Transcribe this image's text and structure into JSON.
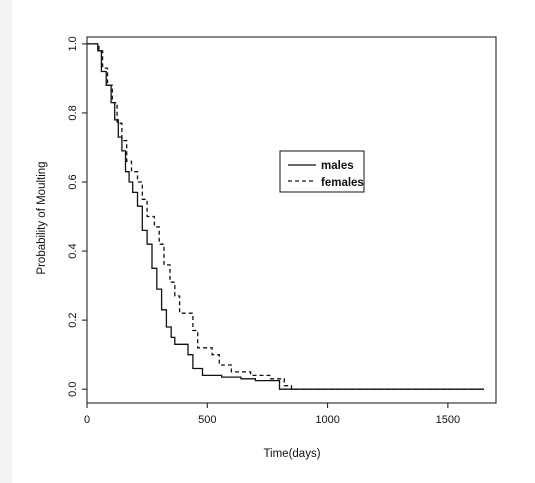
{
  "chart_data": {
    "type": "line",
    "step": true,
    "xlabel": "Time(days)",
    "ylabel": "Probability of Moulting",
    "xlim": [
      0,
      1700
    ],
    "ylim": [
      -0.04,
      1.02
    ],
    "xticks": [
      {
        "value": 0,
        "label": "0"
      },
      {
        "value": 500,
        "label": "500"
      },
      {
        "value": 1000,
        "label": "1000"
      },
      {
        "value": 1500,
        "label": "1500"
      }
    ],
    "yticks": [
      {
        "value": 0.0,
        "label": "0.0"
      },
      {
        "value": 0.2,
        "label": "0.2"
      },
      {
        "value": 0.4,
        "label": "0.4"
      },
      {
        "value": 0.6,
        "label": "0.6"
      },
      {
        "value": 0.8,
        "label": "0.8"
      },
      {
        "value": 1.0,
        "label": "1.0"
      }
    ],
    "grid": false,
    "legend_position": "upper-right",
    "series": [
      {
        "name": "males",
        "line_style": "solid",
        "color": "#111111",
        "points": [
          [
            0,
            1.0
          ],
          [
            45,
            0.98
          ],
          [
            60,
            0.92
          ],
          [
            80,
            0.88
          ],
          [
            100,
            0.83
          ],
          [
            115,
            0.78
          ],
          [
            130,
            0.73
          ],
          [
            145,
            0.69
          ],
          [
            160,
            0.63
          ],
          [
            175,
            0.6
          ],
          [
            190,
            0.57
          ],
          [
            210,
            0.53
          ],
          [
            230,
            0.46
          ],
          [
            250,
            0.42
          ],
          [
            270,
            0.35
          ],
          [
            290,
            0.29
          ],
          [
            310,
            0.23
          ],
          [
            330,
            0.18
          ],
          [
            350,
            0.15
          ],
          [
            365,
            0.13
          ],
          [
            420,
            0.1
          ],
          [
            440,
            0.06
          ],
          [
            480,
            0.04
          ],
          [
            560,
            0.035
          ],
          [
            640,
            0.03
          ],
          [
            700,
            0.025
          ],
          [
            800,
            0.0
          ],
          [
            1650,
            0.0
          ]
        ]
      },
      {
        "name": "females",
        "line_style": "dashed",
        "color": "#111111",
        "points": [
          [
            0,
            1.0
          ],
          [
            50,
            0.98
          ],
          [
            65,
            0.93
          ],
          [
            85,
            0.88
          ],
          [
            105,
            0.83
          ],
          [
            125,
            0.77
          ],
          [
            145,
            0.72
          ],
          [
            165,
            0.66
          ],
          [
            185,
            0.63
          ],
          [
            210,
            0.6
          ],
          [
            230,
            0.55
          ],
          [
            250,
            0.5
          ],
          [
            280,
            0.47
          ],
          [
            300,
            0.42
          ],
          [
            320,
            0.36
          ],
          [
            345,
            0.31
          ],
          [
            365,
            0.27
          ],
          [
            385,
            0.22
          ],
          [
            440,
            0.17
          ],
          [
            460,
            0.12
          ],
          [
            520,
            0.1
          ],
          [
            550,
            0.07
          ],
          [
            600,
            0.05
          ],
          [
            680,
            0.04
          ],
          [
            760,
            0.03
          ],
          [
            820,
            0.01
          ],
          [
            850,
            0.0
          ],
          [
            1650,
            0.0
          ]
        ]
      }
    ]
  }
}
